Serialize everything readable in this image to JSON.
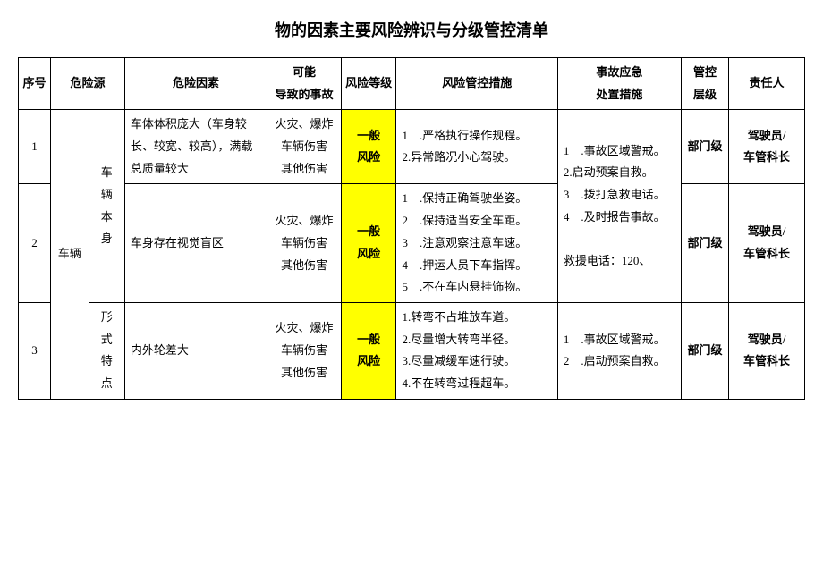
{
  "title": "物的因素主要风险辨识与分级管控清单",
  "headers": {
    "seq": "序号",
    "source": "危险源",
    "factor": "危险因素",
    "accident": "可能\n导致的事故",
    "level": "风险等级",
    "measures": "风险管控措施",
    "emergency": "事故应急\n处置措施",
    "ctrl": "管控\n层级",
    "resp": "责任人"
  },
  "source_col": "车辆",
  "cat1": "车\n辆\n本\n身",
  "cat2": "形\n式\n特\n点",
  "row1": {
    "seq": "1",
    "factor": "车体体积庞大（车身较长、较宽、较高），满载总质量较大",
    "accident": "火灾、爆炸\n车辆伤害\n其他伤害",
    "level": "一般\n风险",
    "measures": "1    .严格执行操作规程。\n2.异常路况小心驾驶。",
    "ctrl": "部门级",
    "resp": "驾驶员/\n车管科长"
  },
  "row2": {
    "seq": "2",
    "factor": "车身存在视觉盲区",
    "accident": "火灾、爆炸\n车辆伤害\n其他伤害",
    "level": "一般\n风险",
    "measures": "1    .保持正确驾驶坐姿。\n2    .保持适当安全车距。\n3    .注意观察注意车速。\n4    .押运人员下车指挥。\n5    .不在车内悬挂饰物。",
    "ctrl": "部门级",
    "resp": "驾驶员/\n车管科长"
  },
  "emergency_block": "1    .事故区域警戒。\n2.启动预案自救。\n3    .拨打急救电话。\n4    .及时报告事故。\n\n救援电话：120、",
  "row3": {
    "seq": "3",
    "factor": "内外轮差大",
    "accident": "火灾、爆炸\n车辆伤害\n其他伤害",
    "level": "一般\n风险",
    "measures": "1.转弯不占堆放车道。\n2.尽量增大转弯半径。\n3.尽量减缓车速行驶。\n4.不在转弯过程超车。",
    "emergency": "1    .事故区域警戒。\n2    .启动预案自救。",
    "ctrl": "部门级",
    "resp": "驾驶员/\n车管科长"
  },
  "colors": {
    "highlight": "#ffff00",
    "border": "#000000",
    "background": "#ffffff"
  }
}
